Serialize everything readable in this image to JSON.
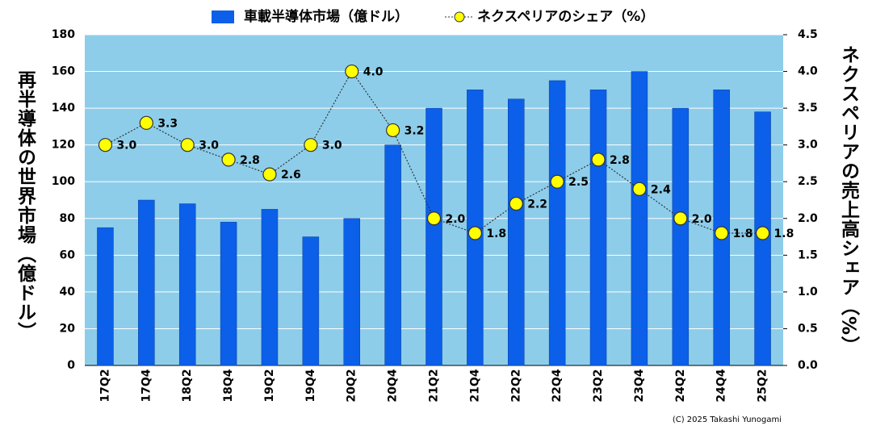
{
  "chart_data": {
    "type": "bar-line",
    "categories": [
      "17Q2",
      "17Q4",
      "18Q2",
      "18Q4",
      "19Q2",
      "19Q4",
      "20Q2",
      "20Q4",
      "21Q2",
      "21Q4",
      "22Q2",
      "22Q4",
      "23Q2",
      "23Q4",
      "24Q2",
      "24Q4",
      "25Q2"
    ],
    "series": [
      {
        "name": "車載半導体市場（億ドル）",
        "type": "bar",
        "color": "#0b5fe8",
        "values": [
          75,
          90,
          88,
          78,
          85,
          70,
          80,
          120,
          140,
          150,
          145,
          155,
          150,
          160,
          140,
          150,
          138
        ]
      },
      {
        "name": "ネクスペリアのシェア（%）",
        "type": "line",
        "axis": "y2",
        "color": "#ffff00",
        "values": [
          3.0,
          3.3,
          3.0,
          2.8,
          2.6,
          3.0,
          4.0,
          3.2,
          2.0,
          1.8,
          2.2,
          2.5,
          2.8,
          2.4,
          2.0,
          1.8,
          1.8
        ],
        "value_labels": [
          "3.0",
          "3.3",
          "3.0",
          "2.8",
          "2.6",
          "3.0",
          "4.0",
          "3.2",
          "2.0",
          "1.8",
          "2.2",
          "2.5",
          "2.8",
          "2.4",
          "2.0",
          "1.8",
          "1.8"
        ]
      }
    ],
    "y_label": "再半導体の世界市場（億ドル）",
    "y2_label": "ネクスペリアの売上高シェア（%）",
    "ylim": [
      0,
      180
    ],
    "yticks": [
      0,
      20,
      40,
      60,
      80,
      100,
      120,
      140,
      160,
      180
    ],
    "y2lim": [
      0,
      4.5
    ],
    "y2ticks": [
      {
        "value": 0,
        "label": "0.0"
      },
      0.5,
      {
        "value": 1,
        "label": "1.0"
      },
      1.5,
      {
        "value": 2,
        "label": "2.0"
      },
      2.5,
      {
        "value": 3,
        "label": "3.0"
      },
      3.5,
      {
        "value": 4,
        "label": "4.0"
      },
      4.5
    ],
    "grid": true,
    "legend": "top",
    "plot_background": "#8dcdea",
    "copyright": "(C) 2025 Takashi Yunogami"
  }
}
